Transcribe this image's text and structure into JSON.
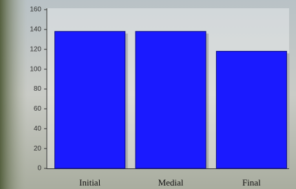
{
  "chart_data": {
    "type": "bar",
    "categories": [
      "Initial",
      "Medial",
      "Final"
    ],
    "values": [
      138,
      138,
      118
    ],
    "color": "#1a1aff",
    "ylim": [
      0,
      160
    ],
    "yticks": [
      0,
      20,
      40,
      60,
      80,
      100,
      120,
      140,
      160
    ],
    "grid": false
  }
}
